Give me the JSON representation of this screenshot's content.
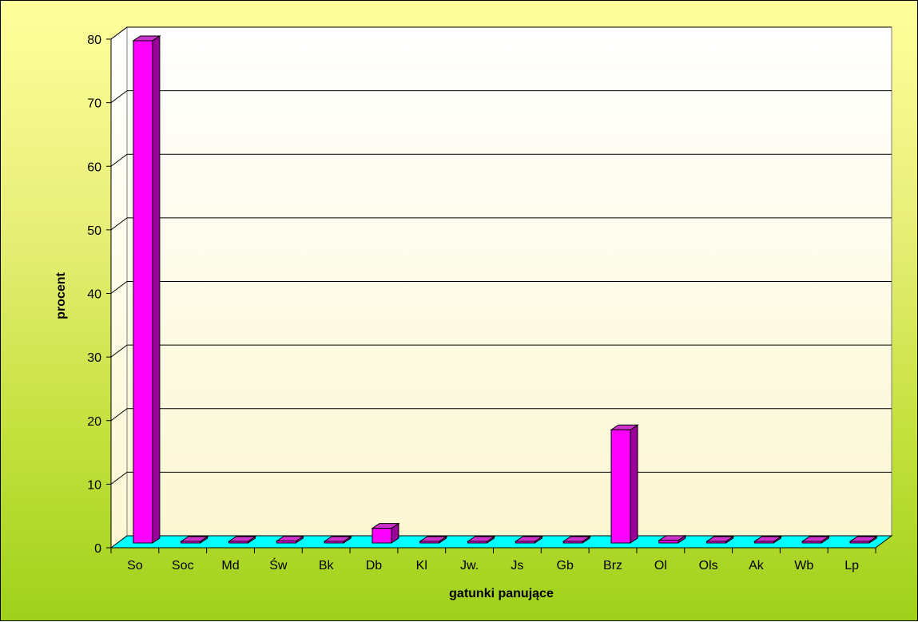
{
  "chart_data": {
    "type": "bar",
    "categories": [
      "So",
      "Soc",
      "Md",
      "Św",
      "Bk",
      "Db",
      "Kl",
      "Jw.",
      "Js",
      "Gb",
      "Brz",
      "Ol",
      "Ols",
      "Ak",
      "Wb",
      "Lp"
    ],
    "series": [
      {
        "values": [
          79,
          0,
          0,
          0.3,
          0,
          2.3,
          0,
          0,
          0,
          0,
          17.8,
          0.4,
          0,
          0,
          0,
          0
        ]
      }
    ],
    "xlabel": "gatunki panujące",
    "ylabel": "procent",
    "ylim": [
      0,
      80
    ],
    "yticks": [
      0,
      10,
      20,
      30,
      40,
      50,
      60,
      70,
      80
    ],
    "grid": true,
    "legend": "none",
    "style": "3d-column",
    "colors": {
      "bar_front": "#ff00ff",
      "bar_side": "#990099",
      "bar_top": "#cc33cc",
      "floor": "#00ffff",
      "wall": "#ffffe8",
      "frame_top": "#ffff9c",
      "frame_bottom": "#9fd11b"
    }
  }
}
